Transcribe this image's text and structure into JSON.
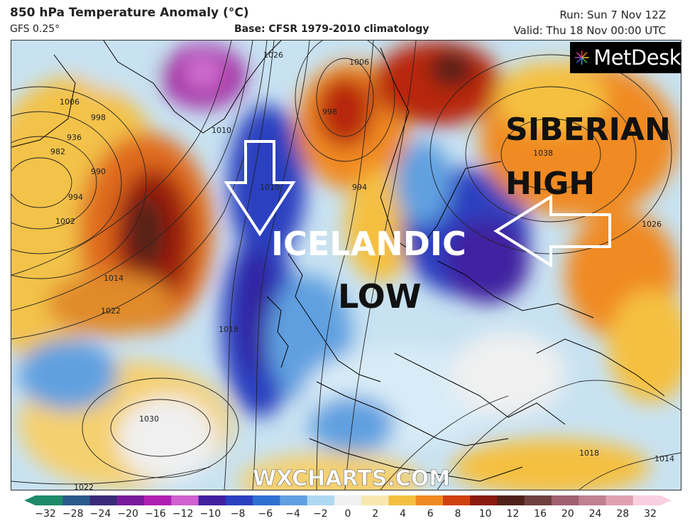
{
  "header": {
    "title": "850 hPa Temperature Anomaly (°C)",
    "model": "GFS 0.25°",
    "base": "Base: CFSR 1979-2010 climatology",
    "run": "Run: Sun 7 Nov 12Z",
    "valid": "Valid: Thu 18 Nov 00:00 UTC"
  },
  "logo": {
    "text": "MetDesk",
    "icon": "metdesk-starburst-icon"
  },
  "annotations": {
    "siberian_1": "SIBERIAN",
    "siberian_2": "HIGH",
    "icelandic_1": "ICELANDIC",
    "icelandic_2": "LOW",
    "watermark": "WXCHARTS.COM"
  },
  "isobars": {
    "l1006": "1006",
    "l998": "998",
    "l936": "936",
    "l982": "982",
    "l990": "990",
    "l994": "994",
    "l1002": "1002",
    "l1014": "1014",
    "l1022": "1022",
    "l1030": "1030",
    "l1022b": "1022",
    "l1018": "1018",
    "l1010": "1010",
    "l1026": "1026",
    "l1038": "1038",
    "l1026b": "1026",
    "l1018b": "1018",
    "l1014b": "1014",
    "l998b": "998",
    "l1006b": "1006",
    "l994b": "994",
    "l1010b": "1010"
  },
  "colorbar": {
    "ticks": [
      "−32",
      "−28",
      "−24",
      "−20",
      "−16",
      "−12",
      "−10",
      "−8",
      "−6",
      "−4",
      "−2",
      "0",
      "2",
      "4",
      "6",
      "8",
      "10",
      "12",
      "16",
      "20",
      "24",
      "28",
      "32"
    ],
    "colors": [
      "#1e8a6a",
      "#2a5a8a",
      "#3a2a7a",
      "#7a1a9a",
      "#b020b0",
      "#d060d0",
      "#4020a0",
      "#2a40c0",
      "#3070d0",
      "#60a0e0",
      "#b0d8f0",
      "#f0f0f0",
      "#f8e8b0",
      "#f5c040",
      "#f08a20",
      "#d04010",
      "#8a1a10",
      "#502018",
      "#704040",
      "#a06070",
      "#c08090",
      "#e0a0b0",
      "#f8d0e0"
    ]
  },
  "colors": {
    "cold": "#2a3ac8",
    "warm": "#b82810",
    "land_outline": "#000000"
  }
}
